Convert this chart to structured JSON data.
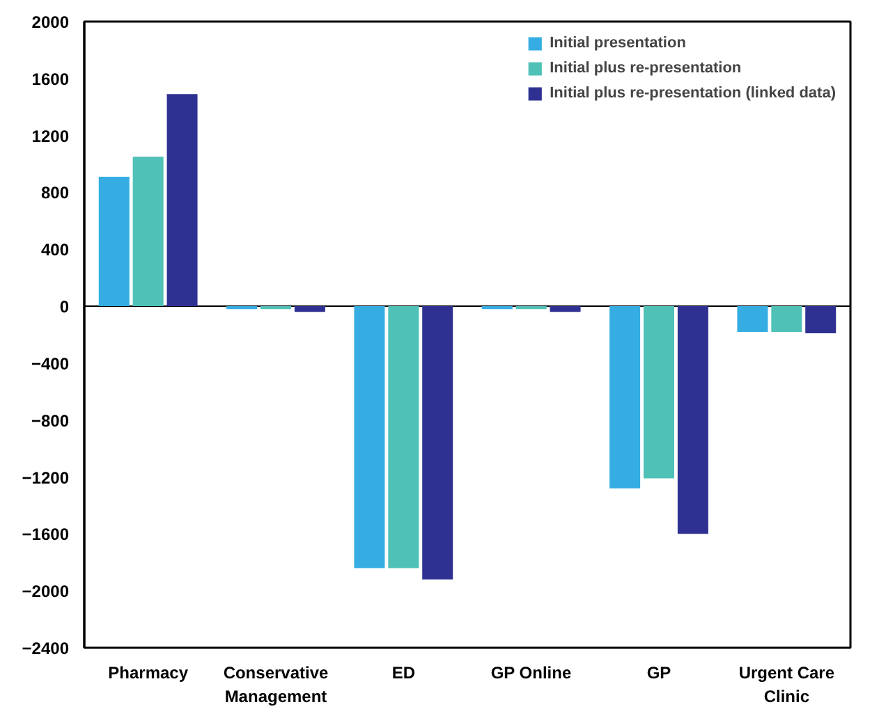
{
  "chart_data": {
    "type": "bar",
    "categories": [
      "Pharmacy",
      "Conservative Management",
      "ED",
      "GP Online",
      "GP",
      "Urgent Care Clinic"
    ],
    "series": [
      {
        "name": "Initial presentation",
        "color": "#35ade2",
        "values": [
          910,
          -20,
          -1840,
          -20,
          -1280,
          -180
        ]
      },
      {
        "name": "Initial plus re-presentation",
        "color": "#4fc1b7",
        "values": [
          1050,
          -20,
          -1840,
          -20,
          -1210,
          -180
        ]
      },
      {
        "name": "Initial plus re-presentation (linked data)",
        "color": "#2e3192",
        "values": [
          1490,
          -40,
          -1920,
          -40,
          -1600,
          -190
        ]
      }
    ],
    "ylim": [
      -2400,
      2000
    ],
    "yticks": [
      -2400,
      -2000,
      -1600,
      -1200,
      -800,
      -400,
      0,
      400,
      800,
      1200,
      1600,
      2000
    ],
    "ref_lines": [
      {
        "axis": "y",
        "value": 0,
        "color": "#000000"
      }
    ],
    "grid": false,
    "legend": "top right"
  }
}
